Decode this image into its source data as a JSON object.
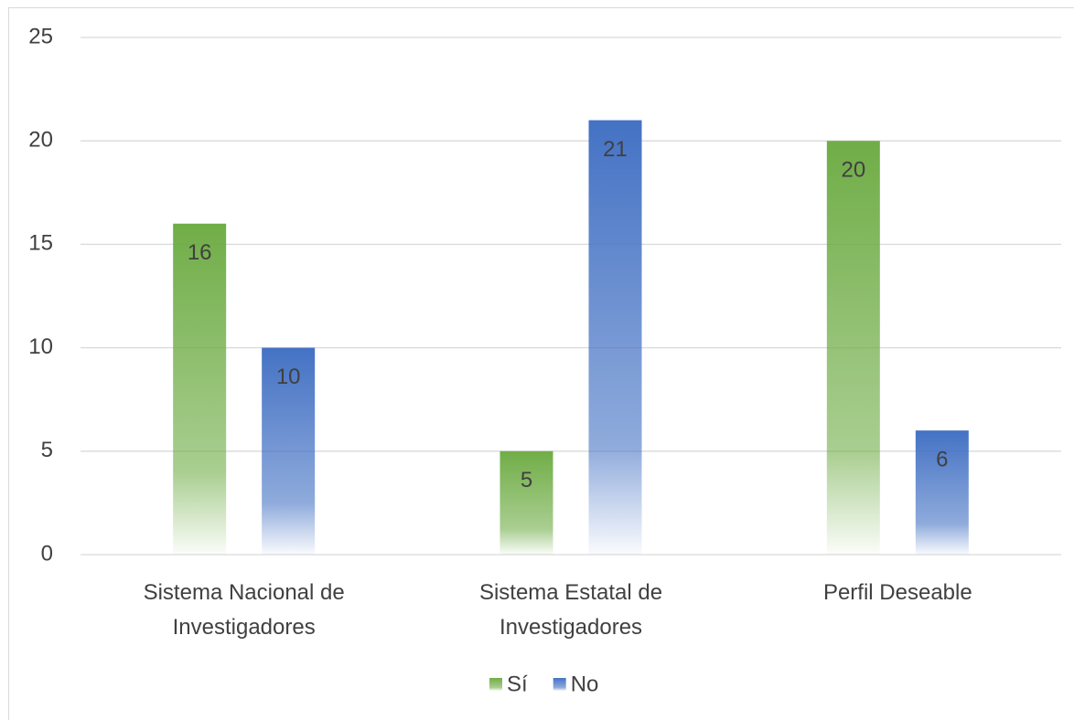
{
  "chart_data": {
    "type": "bar",
    "categories": [
      "Sistema Nacional de Investigadores",
      "Sistema Estatal de Investigadores",
      "Perfil Deseable"
    ],
    "series": [
      {
        "name": "Sí",
        "color": "#70ad47",
        "values": [
          16,
          5,
          20
        ]
      },
      {
        "name": "No",
        "color": "#4472c4",
        "values": [
          10,
          21,
          6
        ]
      }
    ],
    "ylim": [
      0,
      25
    ],
    "yticks": [
      0,
      5,
      10,
      15,
      20,
      25
    ],
    "grid": true,
    "legend": "bottom"
  }
}
